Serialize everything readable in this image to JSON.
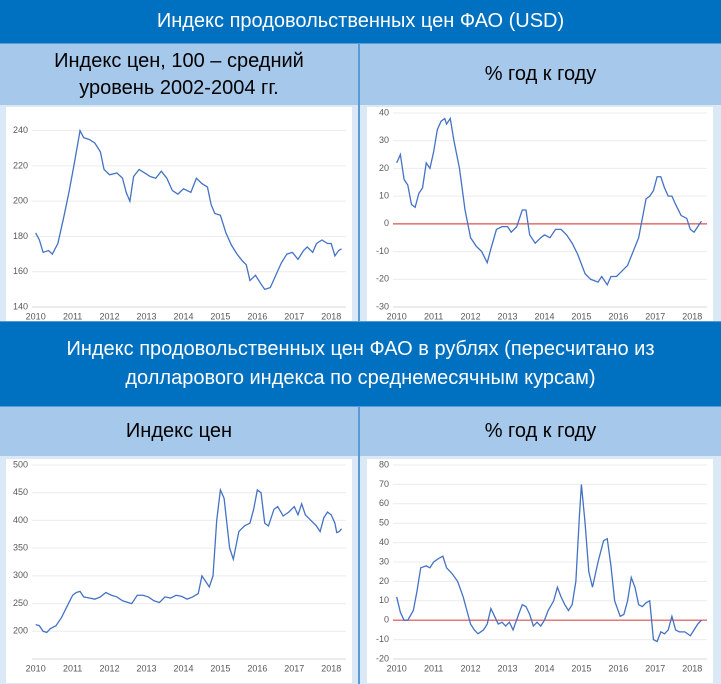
{
  "sections": [
    {
      "title": "Индекс продовольственных цен ФАО (USD)",
      "columns": [
        "Индекс цен, 100 – средний уровень 2002-2004 гг.",
        "% год к году"
      ]
    },
    {
      "title": "Индекс продовольственных цен ФАО в рублях (пересчитано из долларового индекса по среднемесячным курсам)",
      "columns": [
        "Индекс цен",
        "% год к году"
      ]
    }
  ],
  "chart_data": [
    {
      "type": "line",
      "color": "#4472c4",
      "grid": true,
      "xlim": [
        2009.9,
        2018.4
      ],
      "xticks": [
        2010,
        2011,
        2012,
        2013,
        2014,
        2015,
        2016,
        2017,
        2018
      ],
      "ylim": [
        140,
        250
      ],
      "yticks": [
        140,
        160,
        180,
        200,
        220,
        240
      ],
      "x": [
        2010.0,
        2010.1,
        2010.2,
        2010.35,
        2010.45,
        2010.6,
        2010.75,
        2010.9,
        2011.05,
        2011.15,
        2011.2,
        2011.3,
        2011.45,
        2011.6,
        2011.75,
        2011.85,
        2012.0,
        2012.2,
        2012.35,
        2012.45,
        2012.55,
        2012.65,
        2012.8,
        2012.95,
        2013.1,
        2013.25,
        2013.4,
        2013.55,
        2013.7,
        2013.85,
        2014.0,
        2014.2,
        2014.35,
        2014.5,
        2014.65,
        2014.75,
        2014.85,
        2015.0,
        2015.15,
        2015.3,
        2015.45,
        2015.6,
        2015.7,
        2015.8,
        2015.95,
        2016.1,
        2016.2,
        2016.35,
        2016.5,
        2016.65,
        2016.8,
        2016.95,
        2017.1,
        2017.25,
        2017.35,
        2017.5,
        2017.6,
        2017.75,
        2017.9,
        2018.0,
        2018.1,
        2018.2,
        2018.28
      ],
      "values": [
        182,
        178,
        171,
        172,
        170,
        176,
        190,
        205,
        222,
        234,
        240,
        236,
        235,
        233,
        228,
        218,
        215,
        216,
        213,
        205,
        200,
        214,
        218,
        216,
        214,
        213,
        217,
        213,
        206,
        204,
        207,
        205,
        213,
        210,
        208,
        198,
        193,
        192,
        182,
        175,
        170,
        166,
        164,
        155,
        158,
        153,
        150,
        151,
        158,
        165,
        170,
        171,
        167,
        172,
        174,
        171,
        176,
        178,
        176,
        176,
        169,
        172,
        173
      ]
    },
    {
      "type": "line",
      "color": "#4472c4",
      "grid": true,
      "xlim": [
        2009.9,
        2018.4
      ],
      "xticks": [
        2010,
        2011,
        2012,
        2013,
        2014,
        2015,
        2016,
        2017,
        2018
      ],
      "ylim": [
        -30,
        40
      ],
      "yticks": [
        -30,
        -20,
        -10,
        0,
        10,
        20,
        30,
        40
      ],
      "hline": 0,
      "hline_color": "#e05050",
      "x": [
        2010.0,
        2010.1,
        2010.2,
        2010.3,
        2010.4,
        2010.5,
        2010.6,
        2010.7,
        2010.8,
        2010.9,
        2011.0,
        2011.1,
        2011.2,
        2011.3,
        2011.35,
        2011.45,
        2011.55,
        2011.7,
        2011.85,
        2012.0,
        2012.15,
        2012.3,
        2012.45,
        2012.55,
        2012.7,
        2012.85,
        2013.0,
        2013.1,
        2013.25,
        2013.4,
        2013.5,
        2013.6,
        2013.75,
        2013.9,
        2014.0,
        2014.15,
        2014.3,
        2014.45,
        2014.6,
        2014.75,
        2014.9,
        2015.1,
        2015.25,
        2015.45,
        2015.55,
        2015.7,
        2015.8,
        2015.95,
        2016.1,
        2016.25,
        2016.4,
        2016.55,
        2016.65,
        2016.75,
        2016.85,
        2016.95,
        2017.05,
        2017.15,
        2017.25,
        2017.35,
        2017.45,
        2017.55,
        2017.7,
        2017.85,
        2017.95,
        2018.05,
        2018.15,
        2018.25
      ],
      "values": [
        22,
        25,
        16,
        14,
        7,
        6,
        11,
        13,
        22,
        20,
        26,
        34,
        37,
        38,
        36,
        38,
        30,
        20,
        5,
        -5,
        -8,
        -10,
        -14,
        -9,
        -2,
        -1,
        -1,
        -3,
        -1,
        5,
        5,
        -4,
        -7,
        -5,
        -4,
        -5,
        -2,
        -2,
        -4,
        -7,
        -11,
        -18,
        -20,
        -21,
        -19,
        -22,
        -19,
        -19,
        -17,
        -15,
        -10,
        -5,
        2,
        9,
        10,
        12,
        17,
        17,
        13,
        10,
        10,
        7,
        3,
        2,
        -2,
        -3,
        -1,
        1
      ]
    },
    {
      "type": "line",
      "color": "#4472c4",
      "grid": true,
      "xlim": [
        2009.9,
        2018.4
      ],
      "xticks": [
        2010,
        2011,
        2012,
        2013,
        2014,
        2015,
        2016,
        2017,
        2018
      ],
      "ylim": [
        150,
        500
      ],
      "yticks": [
        200,
        250,
        300,
        350,
        400,
        450,
        500
      ],
      "x": [
        2010.0,
        2010.1,
        2010.2,
        2010.3,
        2010.4,
        2010.55,
        2010.7,
        2010.85,
        2011.0,
        2011.1,
        2011.2,
        2011.3,
        2011.45,
        2011.6,
        2011.75,
        2011.9,
        2012.05,
        2012.2,
        2012.35,
        2012.5,
        2012.6,
        2012.75,
        2012.9,
        2013.05,
        2013.2,
        2013.35,
        2013.5,
        2013.65,
        2013.8,
        2013.95,
        2014.1,
        2014.25,
        2014.4,
        2014.5,
        2014.6,
        2014.7,
        2014.8,
        2014.9,
        2015.0,
        2015.1,
        2015.25,
        2015.35,
        2015.5,
        2015.65,
        2015.8,
        2015.9,
        2016.0,
        2016.1,
        2016.2,
        2016.3,
        2016.45,
        2016.55,
        2016.7,
        2016.85,
        2017.0,
        2017.1,
        2017.2,
        2017.3,
        2017.45,
        2017.6,
        2017.7,
        2017.8,
        2017.9,
        2018.0,
        2018.1,
        2018.15,
        2018.22,
        2018.28
      ],
      "values": [
        212,
        210,
        200,
        198,
        205,
        210,
        225,
        245,
        265,
        270,
        272,
        262,
        260,
        258,
        262,
        270,
        265,
        262,
        255,
        252,
        250,
        265,
        265,
        262,
        255,
        252,
        262,
        260,
        265,
        263,
        258,
        262,
        268,
        300,
        290,
        280,
        300,
        400,
        455,
        440,
        350,
        330,
        380,
        390,
        395,
        420,
        455,
        450,
        395,
        390,
        420,
        425,
        408,
        415,
        425,
        410,
        430,
        410,
        400,
        390,
        380,
        405,
        415,
        410,
        395,
        378,
        380,
        385
      ]
    },
    {
      "type": "line",
      "color": "#4472c4",
      "grid": true,
      "xlim": [
        2009.9,
        2018.4
      ],
      "xticks": [
        2010,
        2011,
        2012,
        2013,
        2014,
        2015,
        2016,
        2017,
        2018
      ],
      "ylim": [
        -20,
        80
      ],
      "yticks": [
        -20,
        -10,
        0,
        10,
        20,
        30,
        40,
        50,
        60,
        70,
        80
      ],
      "hline": 0,
      "hline_color": "#e05050",
      "x": [
        2010.0,
        2010.1,
        2010.2,
        2010.3,
        2010.45,
        2010.55,
        2010.65,
        2010.8,
        2010.9,
        2011.0,
        2011.15,
        2011.25,
        2011.35,
        2011.5,
        2011.65,
        2011.8,
        2011.9,
        2012.0,
        2012.1,
        2012.2,
        2012.35,
        2012.45,
        2012.55,
        2012.65,
        2012.75,
        2012.85,
        2012.95,
        2013.05,
        2013.15,
        2013.3,
        2013.4,
        2013.5,
        2013.6,
        2013.7,
        2013.8,
        2013.9,
        2014.0,
        2014.1,
        2014.25,
        2014.35,
        2014.45,
        2014.55,
        2014.65,
        2014.75,
        2014.85,
        2014.95,
        2015.0,
        2015.1,
        2015.2,
        2015.3,
        2015.45,
        2015.6,
        2015.7,
        2015.8,
        2015.9,
        2016.05,
        2016.15,
        2016.25,
        2016.35,
        2016.45,
        2016.55,
        2016.65,
        2016.75,
        2016.85,
        2016.95,
        2017.05,
        2017.15,
        2017.25,
        2017.35,
        2017.45,
        2017.55,
        2017.65,
        2017.8,
        2017.95,
        2018.05,
        2018.15,
        2018.25
      ],
      "values": [
        12,
        4,
        0,
        0,
        5,
        15,
        27,
        28,
        27,
        30,
        32,
        33,
        27,
        24,
        20,
        12,
        5,
        -2,
        -5,
        -7,
        -5,
        -2,
        6,
        2,
        -2,
        -1,
        -3,
        -1,
        -5,
        3,
        8,
        7,
        3,
        -3,
        -1,
        -3,
        0,
        5,
        10,
        17,
        12,
        8,
        5,
        8,
        20,
        55,
        70,
        50,
        25,
        17,
        30,
        41,
        42,
        28,
        10,
        2,
        3,
        10,
        22,
        17,
        8,
        7,
        9,
        10,
        -10,
        -11,
        -6,
        -7,
        -5,
        2,
        -5,
        -6,
        -6,
        -8,
        -5,
        -2,
        0
      ]
    }
  ]
}
